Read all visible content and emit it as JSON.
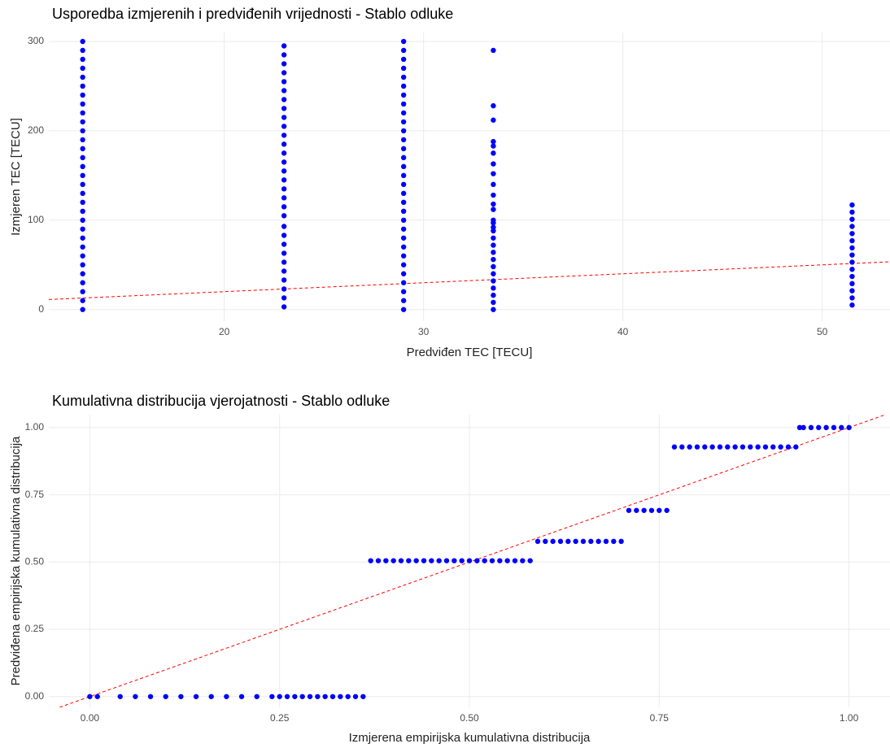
{
  "chart_data": [
    {
      "type": "scatter",
      "title": "Usporedba izmjerenih i predviđenih vrijednosti - Stablo odluke",
      "x_label": "Predviđen TEC [TECU]",
      "y_label": "Izmjeren TEC [TECU]",
      "color": "#0000ff",
      "grid": true,
      "xlim": [
        11.2,
        53.4
      ],
      "ylim": [
        -13,
        310
      ],
      "xticks": [
        20,
        30,
        40,
        50
      ],
      "yticks": [
        0,
        100,
        200,
        300
      ],
      "reference_line": {
        "slope": 1,
        "intercept": 0,
        "color": "#ff0000",
        "dashed": true
      },
      "x": [
        12.9,
        12.9,
        12.9,
        12.9,
        12.9,
        12.9,
        12.9,
        12.9,
        12.9,
        12.9,
        12.9,
        12.9,
        12.9,
        12.9,
        12.9,
        12.9,
        12.9,
        12.9,
        12.9,
        12.9,
        12.9,
        12.9,
        12.9,
        12.9,
        12.9,
        12.9,
        12.9,
        12.9,
        12.9,
        12.9,
        12.9,
        23,
        23,
        23,
        23,
        23,
        23,
        23,
        23,
        23,
        23,
        23,
        23,
        23,
        23,
        23,
        23,
        23,
        23,
        23,
        23,
        23,
        23,
        23,
        23,
        23,
        23,
        23,
        23,
        23,
        23,
        29,
        29,
        29,
        29,
        29,
        29,
        29,
        29,
        29,
        29,
        29,
        29,
        29,
        29,
        29,
        29,
        29,
        29,
        29,
        29,
        29,
        29,
        29,
        29,
        29,
        29,
        29,
        29,
        29,
        29,
        29,
        33.5,
        33.5,
        33.5,
        33.5,
        33.5,
        33.5,
        33.5,
        33.5,
        33.5,
        33.5,
        33.5,
        33.5,
        33.5,
        33.5,
        33.5,
        33.5,
        33.5,
        33.5,
        33.5,
        33.5,
        33.5,
        33.5,
        33.5,
        33.5,
        33.5,
        33.5,
        33.5,
        51.5,
        51.5,
        51.5,
        51.5,
        51.5,
        51.5,
        51.5,
        51.5,
        51.5,
        51.5,
        51.5,
        51.5,
        51.5,
        51.5,
        51.5
      ],
      "values": [
        0,
        10,
        20,
        30,
        40,
        50,
        60,
        70,
        80,
        90,
        100,
        110,
        120,
        130,
        140,
        150,
        160,
        170,
        180,
        190,
        200,
        210,
        220,
        230,
        240,
        250,
        260,
        270,
        280,
        290,
        300,
        3,
        13,
        23,
        33,
        43,
        53,
        63,
        73,
        83,
        93,
        105,
        115,
        125,
        135,
        145,
        155,
        165,
        175,
        185,
        195,
        205,
        215,
        225,
        235,
        245,
        255,
        265,
        275,
        285,
        295,
        0,
        10,
        20,
        30,
        40,
        50,
        60,
        70,
        80,
        90,
        100,
        110,
        120,
        130,
        140,
        150,
        160,
        170,
        180,
        190,
        200,
        210,
        220,
        230,
        240,
        250,
        260,
        270,
        280,
        290,
        300,
        0,
        8,
        16,
        24,
        32,
        40,
        48,
        56,
        64,
        72,
        80,
        88,
        92,
        97,
        100,
        112,
        118,
        128,
        140,
        152,
        163,
        175,
        183,
        188,
        212,
        228,
        290,
        5,
        13,
        21,
        29,
        37,
        45,
        53,
        61,
        69,
        77,
        85,
        93,
        101,
        109,
        117
      ]
    },
    {
      "type": "scatter",
      "title": "Kumulativna distribucija vjerojatnosti - Stablo odluke",
      "x_label": "Izmjerena empirijska kumulativna distribucija",
      "y_label": "Predviđena empirijska kumulativna distribucija",
      "color": "#0000ff",
      "grid": true,
      "xlim": [
        -0.054,
        1.054
      ],
      "ylim": [
        -0.04,
        1.048
      ],
      "xticks": [
        {
          "value": 0,
          "label": "0.00"
        },
        {
          "value": 0.25,
          "label": "0.25"
        },
        {
          "value": 0.5,
          "label": "0.50"
        },
        {
          "value": 0.75,
          "label": "0.75"
        },
        {
          "value": 1,
          "label": "1.00"
        }
      ],
      "yticks": [
        {
          "value": 0,
          "label": "0.00"
        },
        {
          "value": 0.25,
          "label": "0.25"
        },
        {
          "value": 0.5,
          "label": "0.50"
        },
        {
          "value": 0.75,
          "label": "0.75"
        },
        {
          "value": 1,
          "label": "1.00"
        }
      ],
      "reference_line": {
        "slope": 1,
        "intercept": 0,
        "color": "#ff0000",
        "dashed": true
      },
      "x": [
        0,
        0.01,
        0.04,
        0.06,
        0.08,
        0.1,
        0.12,
        0.14,
        0.16,
        0.18,
        0.2,
        0.22,
        0.24,
        0.25,
        0.26,
        0.27,
        0.28,
        0.29,
        0.3,
        0.31,
        0.32,
        0.33,
        0.34,
        0.35,
        0.36,
        0.37,
        0.38,
        0.39,
        0.4,
        0.41,
        0.42,
        0.43,
        0.44,
        0.45,
        0.46,
        0.47,
        0.48,
        0.49,
        0.5,
        0.51,
        0.52,
        0.53,
        0.54,
        0.55,
        0.56,
        0.57,
        0.58,
        0.59,
        0.6,
        0.61,
        0.62,
        0.63,
        0.64,
        0.65,
        0.66,
        0.67,
        0.68,
        0.69,
        0.7,
        0.71,
        0.72,
        0.73,
        0.74,
        0.75,
        0.76,
        0.77,
        0.78,
        0.79,
        0.8,
        0.81,
        0.82,
        0.83,
        0.84,
        0.85,
        0.86,
        0.87,
        0.88,
        0.89,
        0.9,
        0.91,
        0.92,
        0.93,
        0.935,
        0.94,
        0.95,
        0.96,
        0.97,
        0.98,
        0.99,
        1
      ],
      "values": [
        0,
        0,
        0,
        0,
        0,
        0,
        0,
        0,
        0,
        0,
        0,
        0,
        0,
        0,
        0,
        0,
        0,
        0,
        0,
        0,
        0,
        0,
        0,
        0,
        0,
        0.505,
        0.505,
        0.505,
        0.505,
        0.505,
        0.505,
        0.505,
        0.505,
        0.505,
        0.505,
        0.505,
        0.505,
        0.505,
        0.505,
        0.505,
        0.505,
        0.505,
        0.505,
        0.505,
        0.505,
        0.505,
        0.505,
        0.577,
        0.577,
        0.577,
        0.577,
        0.577,
        0.577,
        0.577,
        0.577,
        0.577,
        0.577,
        0.577,
        0.577,
        0.692,
        0.692,
        0.692,
        0.692,
        0.692,
        0.692,
        0.928,
        0.928,
        0.928,
        0.928,
        0.928,
        0.928,
        0.928,
        0.928,
        0.928,
        0.928,
        0.928,
        0.928,
        0.928,
        0.928,
        0.928,
        0.928,
        0.928,
        1,
        1,
        1,
        1,
        1,
        1,
        1,
        1
      ]
    }
  ]
}
